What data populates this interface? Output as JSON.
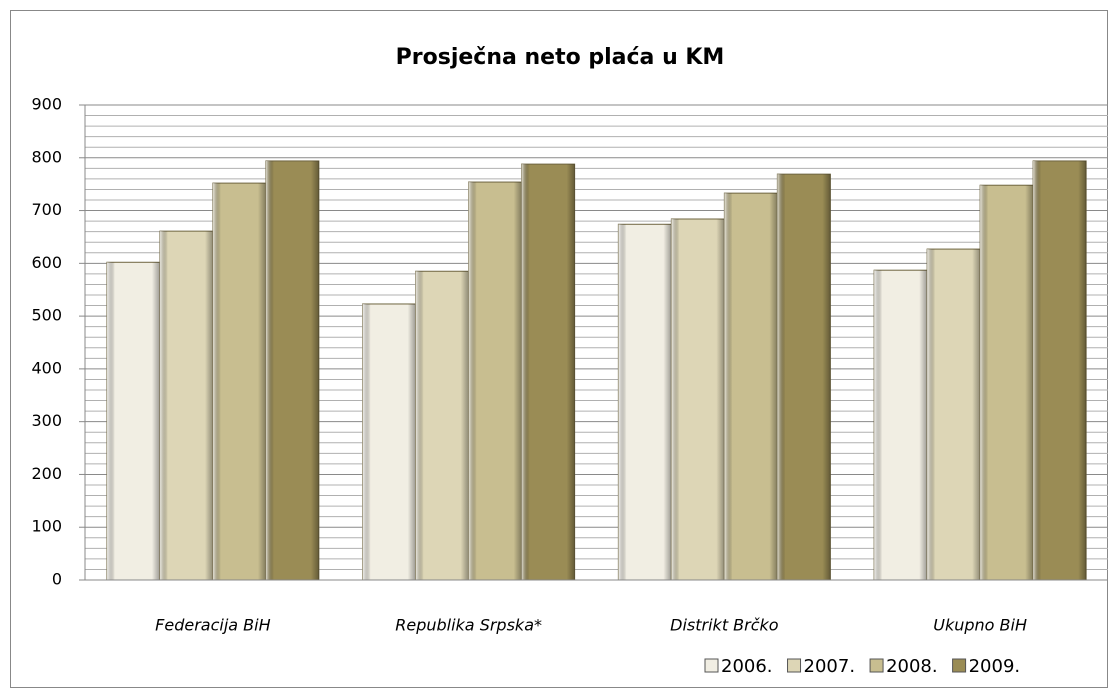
{
  "chart_data": {
    "type": "bar",
    "title": "Prosječna neto plaća u KM",
    "categories": [
      "Federacija  BiH",
      "Republika Srpska*",
      "Distrikt  Brčko",
      "Ukupno BiH"
    ],
    "series": [
      {
        "name": "2006.",
        "color": "#f1eee3",
        "values": [
          602,
          523,
          674,
          587
        ]
      },
      {
        "name": "2007.",
        "color": "#ddd6b6",
        "values": [
          661,
          585,
          684,
          627
        ]
      },
      {
        "name": "2008.",
        "color": "#c8be90",
        "values": [
          752,
          754,
          733,
          748
        ]
      },
      {
        "name": "2009.",
        "color": "#9a8c55",
        "values": [
          794,
          788,
          769,
          794
        ]
      }
    ],
    "ylim": [
      0,
      900
    ],
    "yticks": [
      0,
      100,
      200,
      300,
      400,
      500,
      600,
      700,
      800,
      900
    ],
    "grid": true,
    "legend": "bottom-right"
  }
}
